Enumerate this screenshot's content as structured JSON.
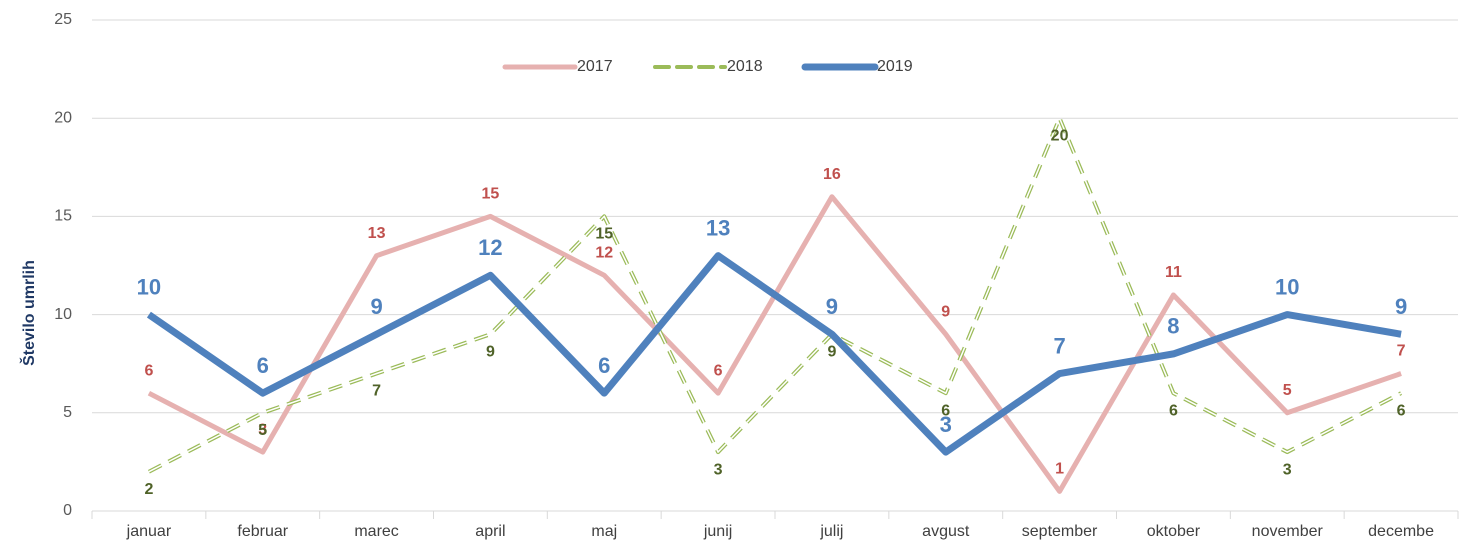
{
  "chart_data": {
    "type": "line",
    "y_label": "Število umrlih",
    "categories": [
      "januar",
      "februar",
      "marec",
      "april",
      "maj",
      "junij",
      "julij",
      "avgust",
      "september",
      "oktober",
      "november",
      "decembe"
    ],
    "series": [
      {
        "name": "2017",
        "color": "#e6b1b0",
        "label_color": "#c0504d",
        "dash": false,
        "width": 5,
        "values": [
          6,
          3,
          13,
          15,
          12,
          6,
          16,
          9,
          1,
          11,
          5,
          7
        ]
      },
      {
        "name": "2018",
        "color": "#9bbb59",
        "label_color": "#4f6228",
        "dash": true,
        "width": 4,
        "values": [
          2,
          5,
          7,
          9,
          15,
          3,
          9,
          6,
          20,
          6,
          3,
          6
        ]
      },
      {
        "name": "2019",
        "color": "#4f81bd",
        "label_color": "#4f81bd",
        "dash": false,
        "width": 7,
        "values": [
          10,
          6,
          9,
          12,
          6,
          13,
          9,
          3,
          7,
          8,
          10,
          9
        ]
      }
    ],
    "ylim": [
      0,
      25
    ],
    "yticks": [
      0,
      5,
      10,
      15,
      20,
      25
    ],
    "grid": true,
    "legend": "top"
  }
}
